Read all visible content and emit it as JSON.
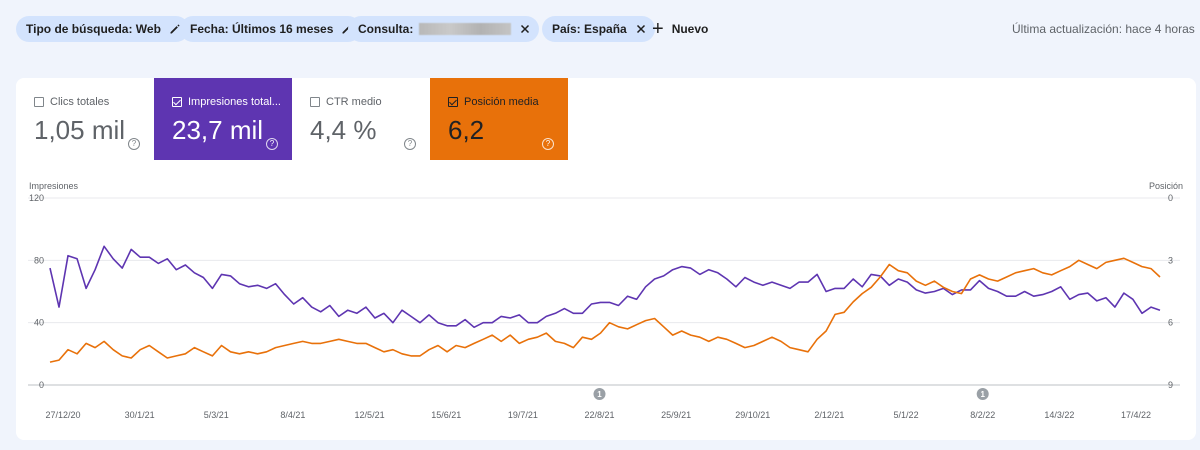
{
  "filters": {
    "chips": [
      {
        "label": "Tipo de búsqueda: Web",
        "icon": "pencil-icon"
      },
      {
        "label": "Fecha: Últimos 16 meses",
        "icon": "pencil-icon"
      },
      {
        "label": "Consulta:",
        "icon": "close-icon",
        "redacted": true
      },
      {
        "label": "País: España",
        "icon": "close-icon"
      }
    ],
    "new_label": "Nuevo",
    "last_update": "Última actualización: hace 4 horas"
  },
  "metrics": [
    {
      "label": "Clics totales",
      "value": "1,05 mil",
      "checked": false
    },
    {
      "label": "Impresiones total...",
      "value": "23,7 mil",
      "checked": true,
      "color": "#5e35b1"
    },
    {
      "label": "CTR medio",
      "value": "4,4 %",
      "checked": false
    },
    {
      "label": "Posición media",
      "value": "6,2",
      "checked": true,
      "color": "#e8710a"
    }
  ],
  "chart_data": {
    "type": "line",
    "ylabel_left": "Impresiones",
    "ylabel_right": "Posición",
    "y_left_ticks": [
      "120",
      "80",
      "40",
      "0"
    ],
    "y_left_range": [
      0,
      120
    ],
    "y_right_ticks": [
      "0",
      "3",
      "6",
      "9"
    ],
    "y_right_range": [
      9,
      0
    ],
    "x_ticks": [
      "27/12/20",
      "30/1/21",
      "5/3/21",
      "8/4/21",
      "12/5/21",
      "15/6/21",
      "19/7/21",
      "22/8/21",
      "25/9/21",
      "29/10/21",
      "2/12/21",
      "5/1/22",
      "8/2/22",
      "14/3/22",
      "17/4/22"
    ],
    "annotations": [
      {
        "date": "22/8/21",
        "label": "1"
      },
      {
        "date": "8/2/22",
        "label": "1"
      }
    ],
    "grid": true,
    "series": [
      {
        "name": "Impresiones",
        "color": "#5e35b1",
        "axis": "left",
        "values": [
          75,
          50,
          83,
          81,
          62,
          74,
          89,
          81,
          75,
          87,
          82,
          82,
          78,
          81,
          74,
          77,
          72,
          69,
          62,
          71,
          70,
          65,
          63,
          64,
          62,
          65,
          58,
          52,
          56,
          50,
          47,
          51,
          44,
          48,
          46,
          50,
          43,
          46,
          40,
          48,
          44,
          40,
          45,
          40,
          38,
          38,
          42,
          37,
          40,
          40,
          44,
          43,
          45,
          40,
          40,
          44,
          46,
          49,
          46,
          46,
          52,
          53,
          53,
          51,
          57,
          55,
          63,
          68,
          70,
          74,
          76,
          75,
          71,
          74,
          72,
          68,
          63,
          69,
          66,
          64,
          66,
          64,
          62,
          66,
          66,
          71,
          60,
          62,
          62,
          68,
          63,
          71,
          70,
          64,
          68,
          66,
          61,
          59,
          60,
          62,
          58,
          61,
          61,
          67,
          62,
          60,
          57,
          57,
          60,
          57,
          58,
          60,
          63,
          55,
          58,
          59,
          54,
          56,
          50,
          59,
          55,
          46,
          50,
          48
        ]
      },
      {
        "name": "Posición",
        "color": "#e8710a",
        "axis": "right",
        "values": [
          7.9,
          7.8,
          7.3,
          7.5,
          7.0,
          7.2,
          6.9,
          7.3,
          7.6,
          7.7,
          7.3,
          7.1,
          7.4,
          7.7,
          7.6,
          7.5,
          7.2,
          7.4,
          7.6,
          7.1,
          7.4,
          7.5,
          7.4,
          7.5,
          7.4,
          7.2,
          7.1,
          7.0,
          6.9,
          7.0,
          7.0,
          6.9,
          6.8,
          6.9,
          7.0,
          7.0,
          7.2,
          7.4,
          7.3,
          7.5,
          7.6,
          7.6,
          7.3,
          7.1,
          7.4,
          7.1,
          7.2,
          7.0,
          6.8,
          6.6,
          6.9,
          6.6,
          7.0,
          6.8,
          6.7,
          6.5,
          6.9,
          7.0,
          7.2,
          6.7,
          6.8,
          6.5,
          6.0,
          6.2,
          6.3,
          6.1,
          5.9,
          5.8,
          6.2,
          6.6,
          6.4,
          6.6,
          6.7,
          6.9,
          6.7,
          6.8,
          7.0,
          7.2,
          7.1,
          6.9,
          6.7,
          6.9,
          7.2,
          7.3,
          7.4,
          6.8,
          6.4,
          5.6,
          5.5,
          5.0,
          4.6,
          4.3,
          3.8,
          3.2,
          3.5,
          3.6,
          4.0,
          4.2,
          4.0,
          4.3,
          4.5,
          4.6,
          3.9,
          3.7,
          3.9,
          4.0,
          3.8,
          3.6,
          3.5,
          3.4,
          3.6,
          3.7,
          3.5,
          3.3,
          3.0,
          3.2,
          3.4,
          3.1,
          3.0,
          2.9,
          3.1,
          3.3,
          3.4,
          3.8
        ]
      }
    ]
  }
}
